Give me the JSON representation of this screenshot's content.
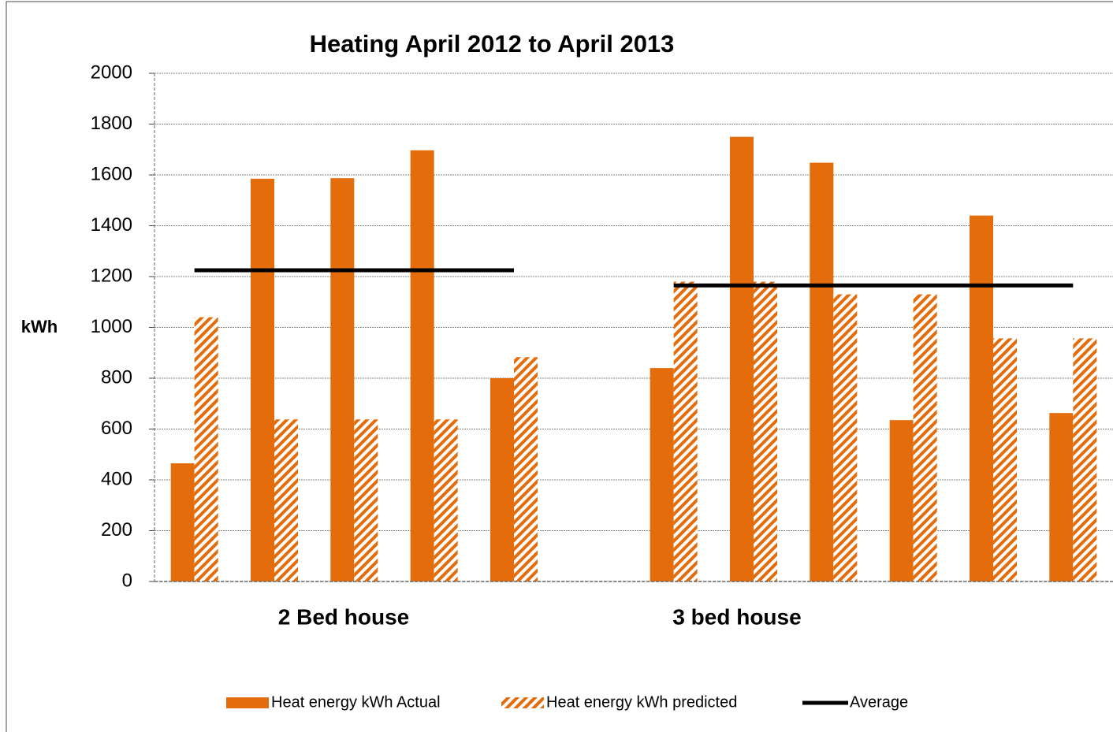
{
  "chart_data": {
    "type": "bar",
    "title": "Heating  April 2012  to April  2013",
    "y_label": "kWh",
    "group_labels": [
      "2 Bed house",
      "3 bed house"
    ],
    "categories": [
      null,
      null,
      null,
      null,
      null,
      null,
      null,
      null,
      null,
      null,
      null,
      null
    ],
    "series": [
      {
        "name": "Heat energy kWh Actual",
        "color": "#e46c0a",
        "pattern": "solid",
        "values": [
          465,
          1585,
          1587,
          1697,
          800,
          null,
          840,
          1750,
          1648,
          635,
          1440,
          663
        ]
      },
      {
        "name": "Heat energy kWh predicted",
        "color": "#e46c0a",
        "pattern": "hatch",
        "values": [
          1040,
          638,
          638,
          638,
          883,
          null,
          1180,
          1180,
          1130,
          1130,
          957,
          957
        ]
      },
      {
        "name": "Average",
        "color": "#000000",
        "type": "line",
        "values": [
          1225,
          1225,
          1225,
          1225,
          1225,
          null,
          1165,
          1165,
          1165,
          1165,
          1165,
          1165
        ]
      }
    ],
    "ylim": [
      0,
      2000
    ],
    "yticks": [
      0,
      200,
      400,
      600,
      800,
      1000,
      1200,
      1400,
      1600,
      1800,
      2000
    ],
    "grid": true,
    "legend": "bottom"
  }
}
